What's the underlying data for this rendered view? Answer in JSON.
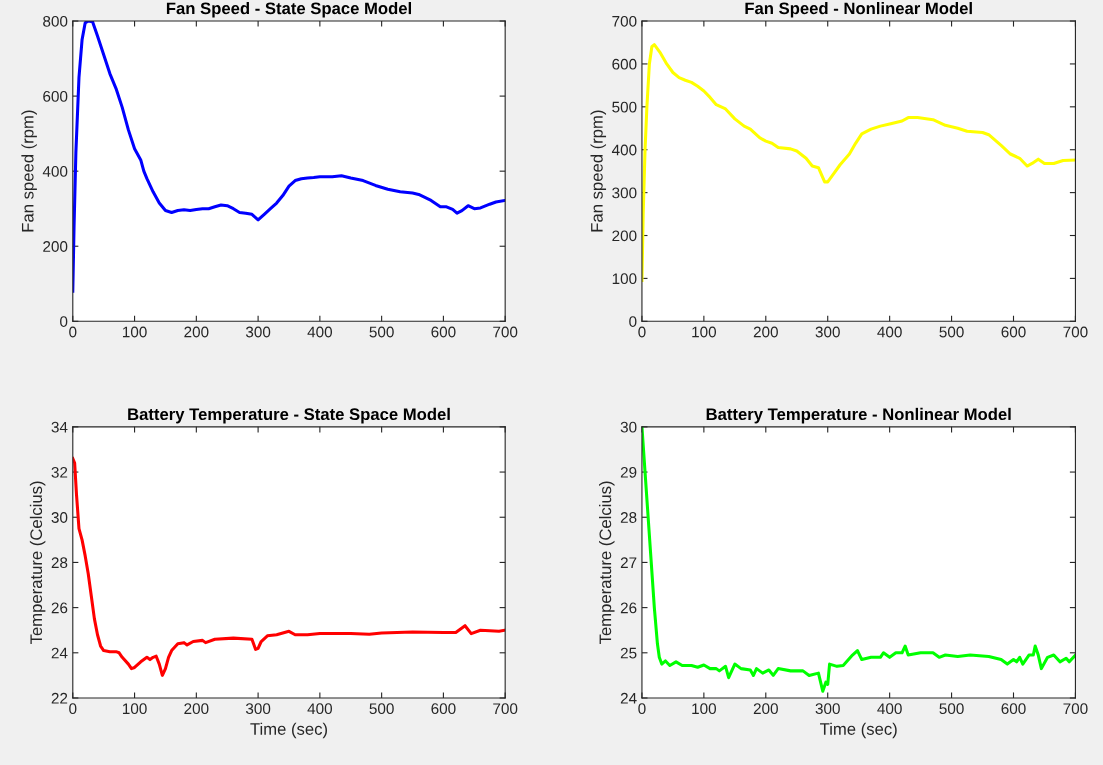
{
  "chart_data": [
    {
      "type": "line",
      "title": "Fan Speed - State Space Model",
      "ylabel": "Fan speed (rpm)",
      "xlim": [
        0,
        700
      ],
      "ylim": [
        0,
        800
      ],
      "xticks": [
        0,
        100,
        200,
        300,
        400,
        500,
        600,
        700
      ],
      "yticks": [
        0,
        200,
        400,
        600,
        800
      ],
      "grid": false,
      "series": [
        {
          "color": "#0000ff",
          "x": [
            0,
            2,
            5,
            10,
            15,
            20,
            25,
            32,
            40,
            50,
            60,
            70,
            80,
            90,
            100,
            110,
            115,
            120,
            130,
            140,
            150,
            160,
            170,
            180,
            190,
            200,
            210,
            220,
            230,
            240,
            250,
            260,
            270,
            280,
            290,
            300,
            310,
            320,
            330,
            340,
            350,
            360,
            370,
            380,
            390,
            400,
            420,
            435,
            450,
            470,
            490,
            510,
            530,
            550,
            560,
            580,
            595,
            605,
            615,
            622,
            630,
            640,
            650,
            660,
            675,
            685,
            700
          ],
          "values": [
            80,
            250,
            450,
            650,
            750,
            795,
            800,
            798,
            760,
            710,
            660,
            620,
            570,
            510,
            460,
            430,
            400,
            380,
            345,
            315,
            295,
            290,
            295,
            297,
            295,
            298,
            300,
            300,
            305,
            310,
            308,
            300,
            290,
            288,
            285,
            270,
            285,
            300,
            315,
            335,
            360,
            375,
            380,
            382,
            383,
            385,
            385,
            388,
            382,
            375,
            362,
            352,
            345,
            342,
            338,
            322,
            305,
            305,
            298,
            288,
            295,
            308,
            300,
            302,
            312,
            318,
            322
          ]
        }
      ]
    },
    {
      "type": "line",
      "title": "Fan Speed - Nonlinear Model",
      "ylabel": "Fan speed (rpm)",
      "xlim": [
        0,
        700
      ],
      "ylim": [
        0,
        700
      ],
      "xticks": [
        0,
        100,
        200,
        300,
        400,
        500,
        600,
        700
      ],
      "yticks": [
        0,
        100,
        200,
        300,
        400,
        500,
        600,
        700
      ],
      "grid": false,
      "series": [
        {
          "color": "#ffff00",
          "x": [
            0,
            2,
            5,
            8,
            12,
            16,
            20,
            30,
            40,
            50,
            60,
            70,
            80,
            90,
            100,
            110,
            120,
            135,
            150,
            165,
            175,
            190,
            200,
            210,
            220,
            240,
            250,
            265,
            275,
            285,
            295,
            300,
            310,
            320,
            335,
            345,
            355,
            370,
            385,
            400,
            420,
            430,
            445,
            470,
            490,
            510,
            525,
            550,
            560,
            580,
            595,
            610,
            622,
            630,
            640,
            650,
            665,
            680,
            700
          ],
          "values": [
            95,
            250,
            400,
            500,
            600,
            640,
            645,
            625,
            600,
            580,
            568,
            562,
            557,
            548,
            537,
            522,
            505,
            495,
            472,
            455,
            448,
            428,
            420,
            415,
            405,
            402,
            397,
            380,
            362,
            358,
            325,
            325,
            345,
            365,
            390,
            415,
            437,
            448,
            455,
            460,
            467,
            475,
            475,
            470,
            457,
            450,
            443,
            440,
            435,
            410,
            390,
            380,
            362,
            368,
            378,
            368,
            368,
            375,
            376
          ]
        }
      ]
    },
    {
      "type": "line",
      "title": "Battery Temperature - State Space Model",
      "xlabel": "Time (sec)",
      "ylabel": "Temperature (Celcius)",
      "xlim": [
        0,
        700
      ],
      "ylim": [
        22,
        34
      ],
      "xticks": [
        0,
        100,
        200,
        300,
        400,
        500,
        600,
        700
      ],
      "yticks": [
        22,
        24,
        26,
        28,
        30,
        32,
        34
      ],
      "grid": false,
      "series": [
        {
          "color": "#ff0000",
          "x": [
            0,
            3,
            6,
            10,
            15,
            20,
            25,
            30,
            35,
            40,
            45,
            50,
            60,
            70,
            75,
            80,
            90,
            95,
            100,
            110,
            120,
            125,
            130,
            135,
            140,
            145,
            150,
            155,
            160,
            170,
            180,
            185,
            195,
            210,
            215,
            230,
            260,
            290,
            296,
            300,
            305,
            315,
            330,
            350,
            360,
            380,
            400,
            450,
            480,
            500,
            550,
            600,
            620,
            635,
            645,
            660,
            690,
            700
          ],
          "values": [
            32.6,
            32.4,
            31,
            29.5,
            29,
            28.3,
            27.5,
            26.5,
            25.5,
            24.8,
            24.3,
            24.1,
            24.05,
            24.05,
            24,
            23.8,
            23.5,
            23.3,
            23.35,
            23.6,
            23.8,
            23.7,
            23.8,
            23.85,
            23.5,
            23.0,
            23.3,
            23.8,
            24.1,
            24.4,
            24.45,
            24.35,
            24.5,
            24.55,
            24.45,
            24.6,
            24.65,
            24.6,
            24.15,
            24.2,
            24.5,
            24.75,
            24.8,
            24.95,
            24.8,
            24.8,
            24.85,
            24.85,
            24.82,
            24.88,
            24.92,
            24.9,
            24.9,
            25.2,
            24.85,
            25.0,
            24.95,
            25.0
          ]
        }
      ]
    },
    {
      "type": "line",
      "title": "Battery Temperature - Nonlinear Model",
      "xlabel": "Time (sec)",
      "ylabel": "Temperature (Celcius)",
      "xlim": [
        0,
        700
      ],
      "ylim": [
        24,
        30
      ],
      "xticks": [
        0,
        100,
        200,
        300,
        400,
        500,
        600,
        700
      ],
      "yticks": [
        24,
        25,
        26,
        27,
        28,
        29,
        30
      ],
      "grid": false,
      "series": [
        {
          "color": "#00ff00",
          "x": [
            0,
            5,
            10,
            15,
            20,
            25,
            28,
            32,
            38,
            45,
            55,
            65,
            80,
            90,
            100,
            110,
            120,
            125,
            135,
            140,
            150,
            160,
            175,
            180,
            185,
            195,
            205,
            212,
            220,
            240,
            260,
            270,
            285,
            292,
            297,
            300,
            303,
            315,
            325,
            340,
            348,
            355,
            370,
            385,
            390,
            400,
            410,
            420,
            425,
            430,
            450,
            470,
            480,
            490,
            510,
            530,
            560,
            580,
            590,
            600,
            605,
            610,
            615,
            625,
            632,
            635,
            640,
            645,
            655,
            665,
            675,
            685,
            690,
            700
          ],
          "values": [
            30,
            29,
            28,
            27,
            26,
            25.2,
            24.9,
            24.75,
            24.82,
            24.72,
            24.8,
            24.72,
            24.72,
            24.68,
            24.73,
            24.65,
            24.65,
            24.6,
            24.7,
            24.45,
            24.75,
            24.65,
            24.62,
            24.5,
            24.65,
            24.55,
            24.62,
            24.5,
            24.65,
            24.6,
            24.6,
            24.5,
            24.55,
            24.15,
            24.35,
            24.3,
            24.75,
            24.7,
            24.72,
            24.95,
            25.05,
            24.85,
            24.9,
            24.9,
            25,
            24.9,
            25,
            25,
            25.15,
            24.95,
            25,
            25,
            24.9,
            24.95,
            24.92,
            24.95,
            24.92,
            24.85,
            24.75,
            24.85,
            24.8,
            24.9,
            24.75,
            24.95,
            24.95,
            25.15,
            24.95,
            24.65,
            24.9,
            24.95,
            24.8,
            24.88,
            24.8,
            24.95
          ]
        }
      ]
    }
  ]
}
